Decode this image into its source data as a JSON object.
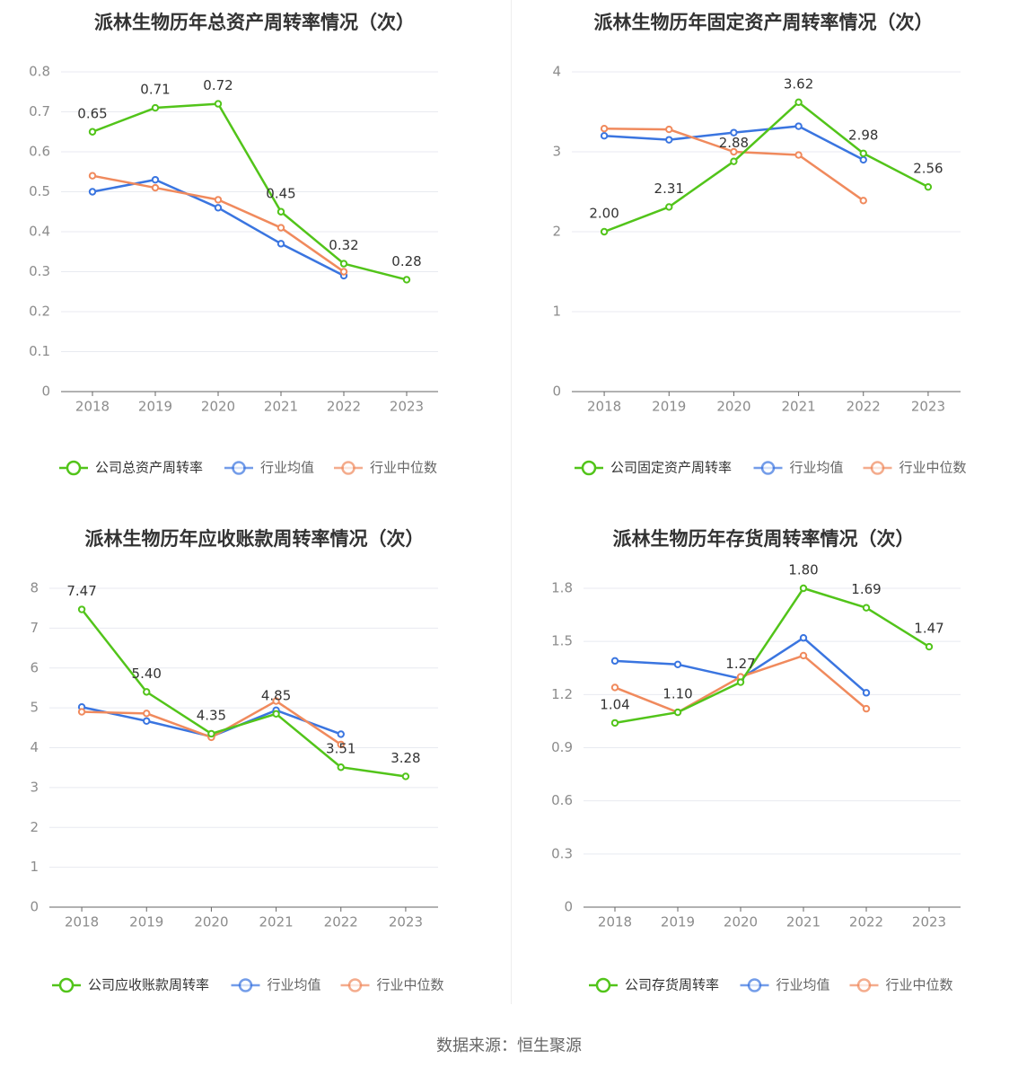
{
  "colors": {
    "company": "#52c41a",
    "industry_avg": "#3a75e0",
    "industry_median": "#f08a5d",
    "grid": "#e8eaf0",
    "axis": "#666666",
    "label": "#333333",
    "tick": "#8c8c8c"
  },
  "footer": {
    "source": "数据来源：恒生聚源"
  },
  "chart_data": [
    {
      "type": "line",
      "title": "派林生物历年总资产周转率情况（次）",
      "categories": [
        "2018",
        "2019",
        "2020",
        "2021",
        "2022",
        "2023"
      ],
      "ylim": [
        0,
        0.8
      ],
      "yticks": [
        0,
        0.1,
        0.2,
        0.3,
        0.4,
        0.5,
        0.6,
        0.7,
        0.8
      ],
      "ytick_labels": [
        "0",
        "0.1",
        "0.2",
        "0.3",
        "0.4",
        "0.5",
        "0.6",
        "0.7",
        "0.8"
      ],
      "series": [
        {
          "name": "公司总资产周转率",
          "key": "company",
          "values": [
            0.65,
            0.71,
            0.72,
            0.45,
            0.32,
            0.28
          ],
          "labels": [
            "0.65",
            "0.71",
            "0.72",
            "0.45",
            "0.32",
            "0.28"
          ]
        },
        {
          "name": "行业均值",
          "key": "industry_avg",
          "values": [
            0.5,
            0.53,
            0.46,
            0.37,
            0.29,
            null
          ]
        },
        {
          "name": "行业中位数",
          "key": "industry_median",
          "values": [
            0.54,
            0.51,
            0.48,
            0.41,
            0.3,
            null
          ]
        }
      ]
    },
    {
      "type": "line",
      "title": "派林生物历年固定资产周转率情况（次）",
      "categories": [
        "2018",
        "2019",
        "2020",
        "2021",
        "2022",
        "2023"
      ],
      "ylim": [
        0,
        4
      ],
      "yticks": [
        0,
        1,
        2,
        3,
        4
      ],
      "ytick_labels": [
        "0",
        "1",
        "2",
        "3",
        "4"
      ],
      "series": [
        {
          "name": "公司固定资产周转率",
          "key": "company",
          "values": [
            2.0,
            2.31,
            2.88,
            3.62,
            2.98,
            2.56
          ],
          "labels": [
            "2.00",
            "2.31",
            "2.88",
            "3.62",
            "2.98",
            "2.56"
          ]
        },
        {
          "name": "行业均值",
          "key": "industry_avg",
          "values": [
            3.2,
            3.15,
            3.24,
            3.32,
            2.9,
            null
          ]
        },
        {
          "name": "行业中位数",
          "key": "industry_median",
          "values": [
            3.29,
            3.28,
            3.0,
            2.96,
            2.39,
            null
          ]
        }
      ]
    },
    {
      "type": "line",
      "title": "派林生物历年应收账款周转率情况（次）",
      "categories": [
        "2018",
        "2019",
        "2020",
        "2021",
        "2022",
        "2023"
      ],
      "ylim": [
        0,
        8
      ],
      "yticks": [
        0,
        1,
        2,
        3,
        4,
        5,
        6,
        7,
        8
      ],
      "ytick_labels": [
        "0",
        "1",
        "2",
        "3",
        "4",
        "5",
        "6",
        "7",
        "8"
      ],
      "series": [
        {
          "name": "公司应收账款周转率",
          "key": "company",
          "values": [
            7.47,
            5.4,
            4.35,
            4.85,
            3.51,
            3.28
          ],
          "labels": [
            "7.47",
            "5.40",
            "4.35",
            "4.85",
            "3.51",
            "3.28"
          ]
        },
        {
          "name": "行业均值",
          "key": "industry_avg",
          "values": [
            5.02,
            4.67,
            4.28,
            4.94,
            4.34,
            null
          ]
        },
        {
          "name": "行业中位数",
          "key": "industry_median",
          "values": [
            4.9,
            4.86,
            4.26,
            5.17,
            4.08,
            null
          ]
        }
      ]
    },
    {
      "type": "line",
      "title": "派林生物历年存货周转率情况（次）",
      "categories": [
        "2018",
        "2019",
        "2020",
        "2021",
        "2022",
        "2023"
      ],
      "ylim": [
        0,
        1.8
      ],
      "yticks": [
        0,
        0.3,
        0.6,
        0.9,
        1.2,
        1.5,
        1.8
      ],
      "ytick_labels": [
        "0",
        "0.3",
        "0.6",
        "0.9",
        "1.2",
        "1.5",
        "1.8"
      ],
      "series": [
        {
          "name": "公司存货周转率",
          "key": "company",
          "values": [
            1.04,
            1.1,
            1.27,
            1.8,
            1.69,
            1.47
          ],
          "labels": [
            "1.04",
            "1.10",
            "1.27",
            "1.80",
            "1.69",
            "1.47"
          ]
        },
        {
          "name": "行业均值",
          "key": "industry_avg",
          "values": [
            1.39,
            1.37,
            1.29,
            1.52,
            1.21,
            null
          ]
        },
        {
          "name": "行业中位数",
          "key": "industry_median",
          "values": [
            1.24,
            1.1,
            1.3,
            1.42,
            1.12,
            null
          ]
        }
      ]
    }
  ]
}
